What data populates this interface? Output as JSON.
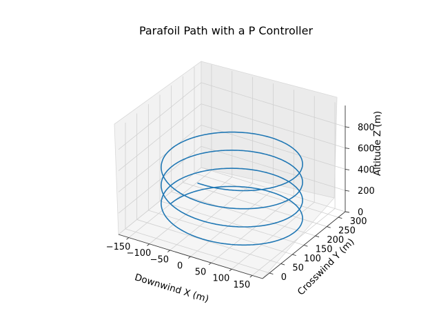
{
  "chart_data": {
    "type": "line3d",
    "title": "Parafoil Path with a P Controller",
    "xlabel": "Downwind X (m)",
    "ylabel": "Crosswind Y (m)",
    "zlabel": "Altitude Z (m)",
    "xlim": [
      -175,
      175
    ],
    "ylim": [
      -30,
      330
    ],
    "zlim": [
      0,
      1000
    ],
    "xticks": [
      "−150",
      "−100",
      "−50",
      "0",
      "50",
      "100",
      "150"
    ],
    "yticks": [
      "0",
      "50",
      "100",
      "150",
      "200",
      "250",
      "300"
    ],
    "zticks": [
      "0",
      "200",
      "400",
      "600",
      "800"
    ],
    "grid": true,
    "line_color": "#1f77b4",
    "helix": {
      "center_x": 0,
      "center_y": 150,
      "radius": 150,
      "z_start": 640,
      "z_end": 0,
      "turns": 3.75
    }
  }
}
